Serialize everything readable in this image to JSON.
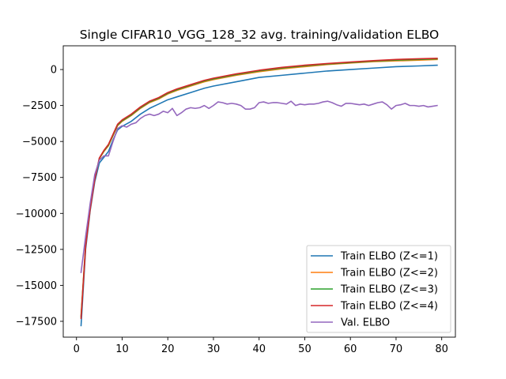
{
  "chart_data": {
    "type": "line",
    "title": "Single CIFAR10_VGG_128_32 avg. training/validation ELBO",
    "xlabel": "",
    "ylabel": "",
    "xlim": [
      -2.9,
      83
    ],
    "ylim": [
      -18600,
      1650
    ],
    "xticks": [
      0,
      10,
      20,
      30,
      40,
      50,
      60,
      70,
      80
    ],
    "yticks": [
      0,
      -2500,
      -5000,
      -7500,
      -10000,
      -12500,
      -15000,
      -17500
    ],
    "grid": false,
    "legend_position": "lower-right",
    "series": [
      {
        "name": "Train ELBO (Z<=1)",
        "color": "#1f77b4",
        "x": [
          1,
          2,
          3,
          4,
          5,
          6,
          7,
          8,
          9,
          10,
          12,
          14,
          16,
          18,
          20,
          22,
          25,
          28,
          30,
          35,
          40,
          45,
          50,
          55,
          60,
          65,
          70,
          75,
          79
        ],
        "y": [
          -17800,
          -12500,
          -9800,
          -7800,
          -6500,
          -6100,
          -5700,
          -4900,
          -4200,
          -3950,
          -3600,
          -3100,
          -2700,
          -2400,
          -2100,
          -1900,
          -1600,
          -1300,
          -1150,
          -850,
          -550,
          -400,
          -250,
          -100,
          0,
          100,
          200,
          250,
          300
        ]
      },
      {
        "name": "Train ELBO (Z<=2)",
        "color": "#ff7f0e",
        "x": [
          1,
          2,
          3,
          4,
          5,
          6,
          7,
          8,
          9,
          10,
          12,
          14,
          16,
          18,
          20,
          22,
          25,
          28,
          30,
          35,
          40,
          45,
          50,
          55,
          60,
          65,
          70,
          75,
          79
        ],
        "y": [
          -17100,
          -12200,
          -9600,
          -7600,
          -6200,
          -5700,
          -5300,
          -4600,
          -3900,
          -3600,
          -3200,
          -2700,
          -2300,
          -2050,
          -1700,
          -1450,
          -1150,
          -850,
          -700,
          -400,
          -150,
          50,
          200,
          350,
          450,
          550,
          600,
          650,
          700
        ]
      },
      {
        "name": "Train ELBO (Z<=3)",
        "color": "#2ca02c",
        "x": [
          1,
          2,
          3,
          4,
          5,
          6,
          7,
          8,
          9,
          10,
          12,
          14,
          16,
          18,
          20,
          22,
          25,
          28,
          30,
          35,
          40,
          45,
          50,
          55,
          60,
          65,
          70,
          75,
          79
        ],
        "y": [
          -17200,
          -12250,
          -9650,
          -7620,
          -6180,
          -5660,
          -5250,
          -4560,
          -3860,
          -3560,
          -3160,
          -2660,
          -2250,
          -2000,
          -1650,
          -1400,
          -1100,
          -800,
          -650,
          -350,
          -100,
          100,
          250,
          380,
          480,
          580,
          650,
          700,
          740
        ]
      },
      {
        "name": "Train ELBO (Z<=4)",
        "color": "#d62728",
        "x": [
          1,
          2,
          3,
          4,
          5,
          6,
          7,
          8,
          9,
          10,
          12,
          14,
          16,
          18,
          20,
          22,
          25,
          28,
          30,
          35,
          40,
          45,
          50,
          55,
          60,
          65,
          70,
          75,
          79
        ],
        "y": [
          -17300,
          -12300,
          -9700,
          -7650,
          -6150,
          -5620,
          -5200,
          -4500,
          -3800,
          -3500,
          -3100,
          -2600,
          -2200,
          -1950,
          -1600,
          -1350,
          -1050,
          -750,
          -600,
          -300,
          -50,
          150,
          300,
          420,
          520,
          620,
          700,
          750,
          780
        ]
      },
      {
        "name": "Val. ELBO",
        "color": "#9467bd",
        "x": [
          1,
          2,
          3,
          4,
          5,
          6,
          7,
          8,
          9,
          10,
          11,
          12,
          13,
          14,
          15,
          16,
          17,
          18,
          19,
          20,
          21,
          22,
          23,
          24,
          25,
          26,
          27,
          28,
          29,
          30,
          31,
          32,
          33,
          34,
          35,
          36,
          37,
          38,
          39,
          40,
          41,
          42,
          43,
          44,
          45,
          46,
          47,
          48,
          49,
          50,
          51,
          52,
          53,
          54,
          55,
          56,
          57,
          58,
          59,
          60,
          61,
          62,
          63,
          64,
          65,
          66,
          67,
          68,
          69,
          70,
          71,
          72,
          73,
          74,
          75,
          76,
          77,
          78,
          79
        ],
        "y": [
          -14100,
          -11600,
          -9300,
          -7300,
          -6300,
          -6000,
          -6000,
          -5000,
          -4100,
          -3900,
          -4000,
          -3800,
          -3700,
          -3400,
          -3200,
          -3100,
          -3200,
          -3100,
          -2900,
          -3000,
          -2700,
          -3200,
          -3000,
          -2750,
          -2650,
          -2700,
          -2650,
          -2500,
          -2700,
          -2500,
          -2250,
          -2300,
          -2400,
          -2350,
          -2400,
          -2500,
          -2750,
          -2750,
          -2650,
          -2300,
          -2250,
          -2350,
          -2300,
          -2300,
          -2350,
          -2400,
          -2200,
          -2500,
          -2400,
          -2450,
          -2400,
          -2400,
          -2350,
          -2250,
          -2200,
          -2300,
          -2450,
          -2550,
          -2350,
          -2350,
          -2400,
          -2450,
          -2400,
          -2500,
          -2400,
          -2300,
          -2250,
          -2450,
          -2750,
          -2500,
          -2450,
          -2350,
          -2500,
          -2500,
          -2550,
          -2500,
          -2600,
          -2550,
          -2500
        ]
      }
    ]
  }
}
